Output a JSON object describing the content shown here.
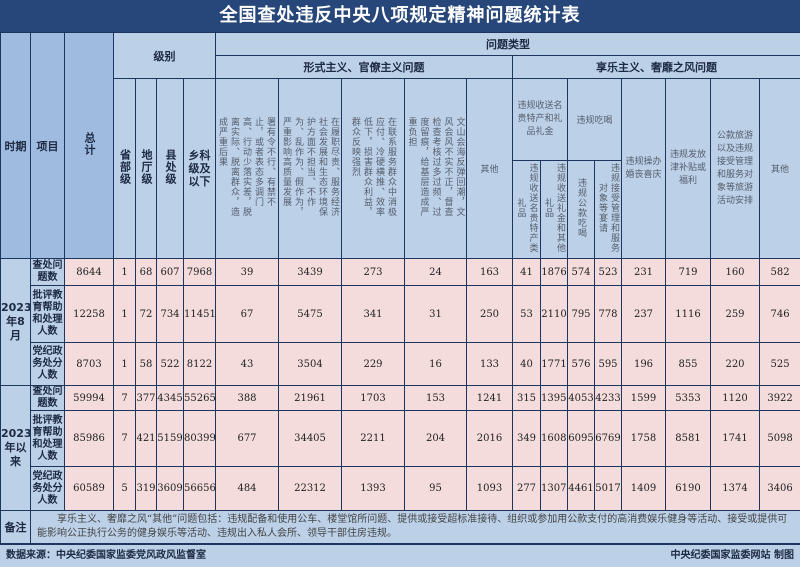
{
  "title": "全国查处违反中央八项规定精神问题统计表",
  "headers": {
    "period": "时期",
    "item": "项目",
    "total": "总计",
    "level": "级别",
    "levels": [
      "省部级",
      "地厅级",
      "县处级",
      "乡科级及以下"
    ],
    "problem_type": "问题类型",
    "formalism": "形式主义、官僚主义问题",
    "formalism_cols": [
      "贯彻党中央重大决策部署有令不行、有禁不止，或者表态多调门高、行动少落实差，脱离实际、脱离群众，造成严重后果",
      "在履职尽责、服务经济社会发展和生态环境保护方面不担当、不作为、乱作为、假作为，严重影响高质量发展",
      "在联系服务群众中消极应付、冷硬横推、效率低下，损害群众利益，群众反映强烈",
      "文山会海反弹回潮，文风会风不实不正，督查检查考核过多过频、过度留痕，给基层造成严重负担",
      "其他"
    ],
    "hedonism": "享乐主义、奢靡之风问题",
    "gift_group": "违规收送名贵特产和礼品礼金",
    "gift_cols": [
      "违规收送名贵特产类礼品",
      "违规收送礼金和其他礼品"
    ],
    "dining_group": "违规吃喝",
    "dining_cols": [
      "违规公款吃喝",
      "违规接受管理和服务对象等宴请"
    ],
    "hedonism_cols": [
      "违规操办婚丧喜庆",
      "违规发放津补贴或福利",
      "公款旅游以及违规接受管理和服务对象等旅游活动安排",
      "其他"
    ]
  },
  "groups": [
    {
      "period": "2023年8月",
      "rows": [
        {
          "item": "查处问题数",
          "values": [
            8644,
            1,
            68,
            607,
            7968,
            39,
            3439,
            273,
            24,
            163,
            41,
            1876,
            574,
            523,
            231,
            719,
            160,
            582
          ]
        },
        {
          "item": "批评教育帮助和处理人数",
          "values": [
            12258,
            1,
            72,
            734,
            11451,
            67,
            5475,
            341,
            31,
            250,
            53,
            2110,
            795,
            778,
            237,
            1116,
            259,
            746
          ]
        },
        {
          "item": "党纪政务处分人数",
          "values": [
            8703,
            1,
            58,
            522,
            8122,
            43,
            3504,
            229,
            16,
            133,
            40,
            1771,
            576,
            595,
            196,
            855,
            220,
            525
          ]
        }
      ]
    },
    {
      "period": "2023年以来",
      "rows": [
        {
          "item": "查处问题数",
          "values": [
            59994,
            7,
            377,
            4345,
            55265,
            388,
            21961,
            1703,
            153,
            1241,
            315,
            13953,
            4053,
            4233,
            1599,
            5353,
            1120,
            3922
          ]
        },
        {
          "item": "批评教育帮助和处理人数",
          "values": [
            85986,
            7,
            421,
            5159,
            80399,
            677,
            34405,
            2211,
            204,
            2016,
            349,
            16082,
            6095,
            6769,
            1758,
            8581,
            1741,
            5098
          ]
        },
        {
          "item": "党纪政务处分人数",
          "values": [
            60589,
            5,
            319,
            3609,
            56656,
            484,
            22312,
            1393,
            95,
            1093,
            277,
            13078,
            4461,
            5017,
            1409,
            6190,
            1374,
            3406
          ]
        }
      ]
    }
  ],
  "notes": {
    "label": "备注",
    "text": "享乐主义、奢靡之风“其他”问题包括：违规配备和使用公车、楼堂馆所问题、提供或接受超标准接待、组织或参加用公款支付的高消费娱乐健身等活动、接受或提供可能影响公正执行公务的健身娱乐等活动、违规出入私人会所、领导干部住房违规。"
  },
  "footer": {
    "source": "数据来源：中央纪委国家监委党风政风监督室",
    "credit": "中央纪委国家监委网站 制图"
  }
}
